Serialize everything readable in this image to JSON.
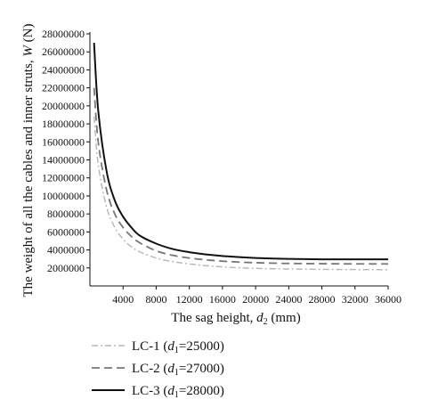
{
  "chart_data": {
    "type": "line",
    "title": "",
    "xlabel": {
      "text": "The sag height, ",
      "sym": "d",
      "sub": "2",
      "unit": " (mm)"
    },
    "ylabel": {
      "text": "The weight of all the cables and inner struts, ",
      "sym": "W",
      "unit": " (N)"
    },
    "xlim": [
      0,
      36000
    ],
    "ylim": [
      0,
      28000000
    ],
    "xticks": [
      4000,
      8000,
      12000,
      16000,
      20000,
      24000,
      28000,
      32000,
      36000
    ],
    "xtick_labels": [
      "4000",
      "8000",
      "12000",
      "16000",
      "20000",
      "24000",
      "28000",
      "32000",
      "36000"
    ],
    "yticks": [
      2000000,
      4000000,
      6000000,
      8000000,
      10000000,
      12000000,
      14000000,
      16000000,
      18000000,
      20000000,
      22000000,
      24000000,
      26000000,
      28000000
    ],
    "ytick_labels": [
      "2000000",
      "4000000",
      "6000000",
      "8000000",
      "10000000",
      "12000000",
      "14000000",
      "16000000",
      "18000000",
      "20000000",
      "22000000",
      "24000000",
      "26000000",
      "28000000"
    ],
    "grid": false,
    "legend_position": "bottom",
    "x": [
      500,
      1000,
      2000,
      3000,
      4000,
      5000,
      6000,
      8000,
      10000,
      12000,
      14000,
      16000,
      18000,
      20000,
      24000,
      28000,
      32000,
      36000
    ],
    "series": [
      {
        "name": "LC-1",
        "label_prefix": "LC-1 (",
        "label_sym": "d",
        "label_sub": "1",
        "label_value": "=25000)",
        "color": "#b5b5b5",
        "dash": "7,3,2,3",
        "width": 1.4,
        "values": [
          18800000,
          13500000,
          8800000,
          6500000,
          5200000,
          4350000,
          3800000,
          3100000,
          2700000,
          2450000,
          2250000,
          2120000,
          2020000,
          1950000,
          1880000,
          1840000,
          1820000,
          1800000
        ]
      },
      {
        "name": "LC-2",
        "label_prefix": "LC-2 (",
        "label_sym": "d",
        "label_sub": "1",
        "label_value": "=27000)",
        "color": "#777777",
        "dash": "9,5",
        "width": 1.8,
        "values": [
          22000000,
          16000000,
          10700000,
          8000000,
          6500000,
          5500000,
          4800000,
          3900000,
          3400000,
          3100000,
          2900000,
          2750000,
          2650000,
          2580000,
          2500000,
          2470000,
          2450000,
          2450000
        ]
      },
      {
        "name": "LC-3",
        "label_prefix": "LC-3 (",
        "label_sym": "d",
        "label_sub": "1",
        "label_value": "=28000)",
        "color": "#111111",
        "dash": "",
        "width": 2.0,
        "values": [
          27000000,
          19500000,
          12800000,
          9500000,
          7700000,
          6500000,
          5600000,
          4700000,
          4100000,
          3750000,
          3500000,
          3330000,
          3200000,
          3100000,
          3000000,
          2960000,
          2950000,
          2960000
        ]
      }
    ]
  }
}
